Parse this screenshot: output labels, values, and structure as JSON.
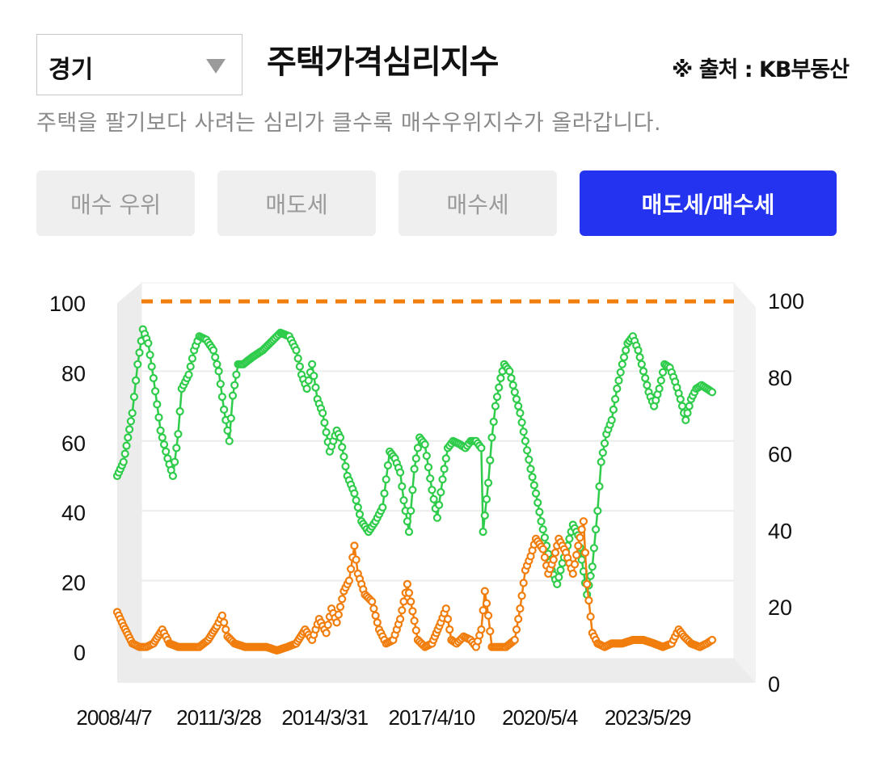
{
  "region_select": {
    "value": "경기"
  },
  "title": "주택가격심리지수",
  "source": "※ 출처 : KB부동산",
  "subtitle": "주택을 팔기보다 사려는 심리가 클수록 매수우위지수가 올라갑니다.",
  "tabs": [
    {
      "label": "매수 우위",
      "active": false
    },
    {
      "label": "매도세",
      "active": false
    },
    {
      "label": "매수세",
      "active": false
    },
    {
      "label": "매도세/매수세",
      "active": true
    }
  ],
  "colors": {
    "accent": "#2333f0",
    "green": "#2ecc4a",
    "orange": "#f07d0c",
    "inactive_tab": "#efefef"
  },
  "chart_data": {
    "type": "line",
    "xlabel": "",
    "ylabel": "",
    "left_axis": {
      "ticks": [
        "0",
        "20",
        "40",
        "60",
        "80",
        "100"
      ],
      "ylim": [
        0,
        100
      ]
    },
    "right_axis": {
      "ticks": [
        "0",
        "20",
        "40",
        "60",
        "80",
        "100"
      ],
      "ylim": [
        0,
        100
      ]
    },
    "x_tick_labels": [
      "2008/4/7",
      "2011/3/28",
      "2014/3/31",
      "2017/4/10",
      "2020/5/4",
      "2023/5/29"
    ],
    "x_tick_positions_year": [
      2008.27,
      2011.24,
      2014.25,
      2017.28,
      2020.35,
      2023.41
    ],
    "xlim": [
      2008.27,
      2025.7
    ],
    "reference_line": {
      "value": 100,
      "style": "dashed",
      "color": "#f07d0c"
    },
    "series": [
      {
        "name": "매수세",
        "color": "#2ecc4a",
        "points": [
          [
            2008.27,
            50
          ],
          [
            2008.45,
            54
          ],
          [
            2008.7,
            68
          ],
          [
            2008.85,
            82
          ],
          [
            2009.0,
            92
          ],
          [
            2009.15,
            88
          ],
          [
            2009.3,
            78
          ],
          [
            2009.5,
            63
          ],
          [
            2009.7,
            55
          ],
          [
            2009.85,
            50
          ],
          [
            2010.0,
            62
          ],
          [
            2010.1,
            75
          ],
          [
            2010.3,
            79
          ],
          [
            2010.45,
            86
          ],
          [
            2010.6,
            90
          ],
          [
            2010.8,
            89
          ],
          [
            2011.0,
            86
          ],
          [
            2011.15,
            80
          ],
          [
            2011.3,
            69
          ],
          [
            2011.45,
            60
          ],
          [
            2011.55,
            73
          ],
          [
            2011.7,
            82
          ],
          [
            2011.85,
            82
          ],
          [
            2012.1,
            84
          ],
          [
            2012.4,
            86
          ],
          [
            2012.7,
            89
          ],
          [
            2012.9,
            91
          ],
          [
            2013.15,
            90
          ],
          [
            2013.35,
            86
          ],
          [
            2013.5,
            79
          ],
          [
            2013.65,
            75
          ],
          [
            2013.8,
            82
          ],
          [
            2013.95,
            72
          ],
          [
            2014.1,
            68
          ],
          [
            2014.3,
            57
          ],
          [
            2014.5,
            63
          ],
          [
            2014.6,
            61
          ],
          [
            2014.8,
            50
          ],
          [
            2015.0,
            45
          ],
          [
            2015.2,
            37
          ],
          [
            2015.4,
            34
          ],
          [
            2015.6,
            37
          ],
          [
            2015.8,
            41
          ],
          [
            2016.0,
            57
          ],
          [
            2016.15,
            55
          ],
          [
            2016.3,
            51
          ],
          [
            2016.4,
            43
          ],
          [
            2016.55,
            34
          ],
          [
            2016.7,
            52
          ],
          [
            2016.85,
            61
          ],
          [
            2017.0,
            59
          ],
          [
            2017.2,
            46
          ],
          [
            2017.35,
            38
          ],
          [
            2017.5,
            49
          ],
          [
            2017.65,
            58
          ],
          [
            2017.8,
            60
          ],
          [
            2018.0,
            59
          ],
          [
            2018.15,
            58
          ],
          [
            2018.3,
            60
          ],
          [
            2018.45,
            60
          ],
          [
            2018.6,
            58
          ],
          [
            2018.65,
            34
          ],
          [
            2018.8,
            48
          ],
          [
            2018.9,
            61
          ],
          [
            2019.0,
            70
          ],
          [
            2019.15,
            78
          ],
          [
            2019.25,
            82
          ],
          [
            2019.4,
            80
          ],
          [
            2019.55,
            74
          ],
          [
            2019.7,
            68
          ],
          [
            2019.85,
            60
          ],
          [
            2020.0,
            52
          ],
          [
            2020.15,
            45
          ],
          [
            2020.3,
            37
          ],
          [
            2020.45,
            30
          ],
          [
            2020.6,
            23
          ],
          [
            2020.75,
            19
          ],
          [
            2020.9,
            25
          ],
          [
            2021.05,
            30
          ],
          [
            2021.2,
            36
          ],
          [
            2021.35,
            33
          ],
          [
            2021.45,
            26
          ],
          [
            2021.6,
            16
          ],
          [
            2021.75,
            24
          ],
          [
            2021.9,
            40
          ],
          [
            2022.0,
            54
          ],
          [
            2022.15,
            62
          ],
          [
            2022.3,
            66
          ],
          [
            2022.45,
            75
          ],
          [
            2022.6,
            82
          ],
          [
            2022.75,
            88
          ],
          [
            2022.9,
            90
          ],
          [
            2023.05,
            86
          ],
          [
            2023.2,
            80
          ],
          [
            2023.35,
            74
          ],
          [
            2023.5,
            70
          ],
          [
            2023.65,
            75
          ],
          [
            2023.8,
            82
          ],
          [
            2023.95,
            81
          ],
          [
            2024.1,
            77
          ],
          [
            2024.25,
            72
          ],
          [
            2024.4,
            66
          ],
          [
            2024.55,
            72
          ],
          [
            2024.7,
            75
          ],
          [
            2024.85,
            76
          ],
          [
            2025.0,
            75
          ],
          [
            2025.15,
            74
          ]
        ]
      },
      {
        "name": "매도세",
        "color": "#f07d0c",
        "points": [
          [
            2008.27,
            11
          ],
          [
            2008.45,
            7
          ],
          [
            2008.7,
            2
          ],
          [
            2008.9,
            1
          ],
          [
            2009.1,
            1
          ],
          [
            2009.3,
            2
          ],
          [
            2009.55,
            6
          ],
          [
            2009.75,
            2
          ],
          [
            2010.0,
            1
          ],
          [
            2010.3,
            1
          ],
          [
            2010.6,
            1
          ],
          [
            2010.85,
            3
          ],
          [
            2011.1,
            7
          ],
          [
            2011.25,
            10
          ],
          [
            2011.4,
            4
          ],
          [
            2011.6,
            2
          ],
          [
            2011.9,
            1
          ],
          [
            2012.2,
            1
          ],
          [
            2012.5,
            1
          ],
          [
            2012.8,
            0
          ],
          [
            2013.1,
            1
          ],
          [
            2013.35,
            2
          ],
          [
            2013.6,
            6
          ],
          [
            2013.8,
            3
          ],
          [
            2014.0,
            9
          ],
          [
            2014.2,
            5
          ],
          [
            2014.35,
            12
          ],
          [
            2014.5,
            8
          ],
          [
            2014.7,
            17
          ],
          [
            2014.85,
            20
          ],
          [
            2015.0,
            30
          ],
          [
            2015.1,
            22
          ],
          [
            2015.3,
            16
          ],
          [
            2015.5,
            14
          ],
          [
            2015.7,
            6
          ],
          [
            2015.9,
            2
          ],
          [
            2016.1,
            3
          ],
          [
            2016.3,
            9
          ],
          [
            2016.5,
            19
          ],
          [
            2016.6,
            14
          ],
          [
            2016.8,
            3
          ],
          [
            2017.0,
            1
          ],
          [
            2017.2,
            2
          ],
          [
            2017.45,
            8
          ],
          [
            2017.6,
            12
          ],
          [
            2017.75,
            3
          ],
          [
            2017.9,
            2
          ],
          [
            2018.1,
            4
          ],
          [
            2018.3,
            3
          ],
          [
            2018.45,
            1
          ],
          [
            2018.6,
            6
          ],
          [
            2018.7,
            17
          ],
          [
            2018.8,
            10
          ],
          [
            2018.9,
            1
          ],
          [
            2019.1,
            1
          ],
          [
            2019.3,
            1
          ],
          [
            2019.55,
            3
          ],
          [
            2019.7,
            12
          ],
          [
            2019.85,
            23
          ],
          [
            2020.0,
            27
          ],
          [
            2020.15,
            32
          ],
          [
            2020.35,
            29
          ],
          [
            2020.5,
            22
          ],
          [
            2020.65,
            26
          ],
          [
            2020.8,
            32
          ],
          [
            2021.0,
            28
          ],
          [
            2021.2,
            22
          ],
          [
            2021.35,
            30
          ],
          [
            2021.5,
            37
          ],
          [
            2021.6,
            19
          ],
          [
            2021.75,
            5
          ],
          [
            2021.9,
            2
          ],
          [
            2022.1,
            1
          ],
          [
            2022.3,
            2
          ],
          [
            2022.6,
            2
          ],
          [
            2022.9,
            3
          ],
          [
            2023.2,
            3
          ],
          [
            2023.5,
            2
          ],
          [
            2023.75,
            1
          ],
          [
            2024.0,
            2
          ],
          [
            2024.2,
            6
          ],
          [
            2024.35,
            4
          ],
          [
            2024.55,
            2
          ],
          [
            2024.8,
            1
          ],
          [
            2025.0,
            2
          ],
          [
            2025.15,
            3
          ]
        ]
      }
    ]
  }
}
